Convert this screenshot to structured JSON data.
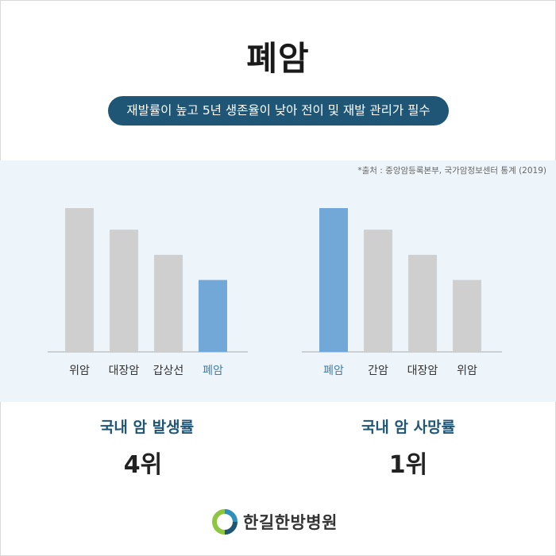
{
  "title": "폐암",
  "subtitle": "재발률이 높고 5년 생존율이 낮아 전이 및 재발 관리가 필수",
  "source": "*출처 : 중앙암등록본부, 국가암정보센터 통계 (2019)",
  "colors": {
    "bar_gray": "#cfcfcf",
    "bar_highlight": "#72a8d8",
    "accent": "#1f5676",
    "panel_bg": "#eef5fa"
  },
  "chart_data": [
    {
      "type": "bar",
      "title": "국내 암 발생률",
      "categories": [
        "위암",
        "대장암",
        "갑상선",
        "폐암"
      ],
      "values": [
        4,
        3.4,
        2.7,
        2.0
      ],
      "highlight": "폐암",
      "note": "Relative bar heights ordered by rank; no axis ticks printed",
      "rank_label": "4위"
    },
    {
      "type": "bar",
      "title": "국내 암 사망률",
      "categories": [
        "폐암",
        "간암",
        "대장암",
        "위암"
      ],
      "values": [
        4,
        3.4,
        2.7,
        2.0
      ],
      "highlight": "폐암",
      "rank_label": "1위"
    }
  ],
  "logo": {
    "text": "한길한방병원"
  }
}
